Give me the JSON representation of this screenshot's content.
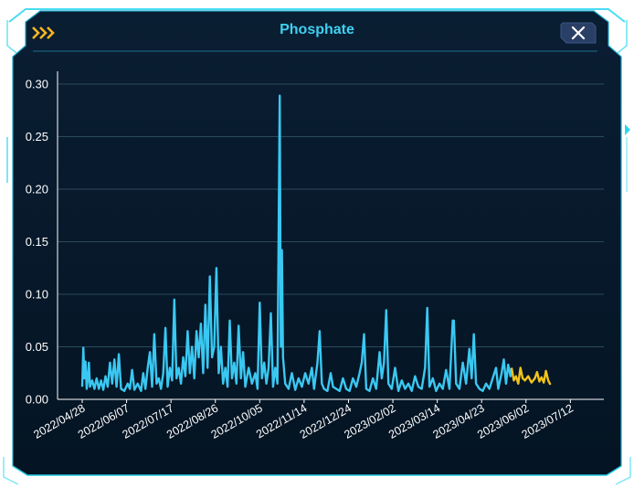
{
  "panel": {
    "title": "Phosphate",
    "chevron_icon": "triple-chevron-right-icon",
    "close_icon": "close-icon",
    "accent_color": "#3fd0f0",
    "chevron_color": "#f5b622",
    "background_color": "#06182a",
    "border_color": "#2ad6ee"
  },
  "chart_data": {
    "type": "line",
    "title": "Phosphate",
    "xlabel": "",
    "ylabel": "",
    "ylim": [
      0,
      0.3
    ],
    "grid": "horizontal",
    "y_ticks": [
      "0.00",
      "0.05",
      "0.10",
      "0.15",
      "0.20",
      "0.25",
      "0.30"
    ],
    "x_ticks": [
      "2022/04/28",
      "2022/06/07",
      "2022/07/17",
      "2022/08/26",
      "2022/10/05",
      "2022/11/14",
      "2022/12/24",
      "2023/02/02",
      "2023/03/14",
      "2023/04/23",
      "2023/06/02",
      "2023/07/12"
    ],
    "x_range": [
      "2022/04/28",
      "2023/07/29"
    ],
    "series": [
      {
        "color": "#3ac8f2",
        "points": [
          [
            "2022/04/28",
            0.012
          ],
          [
            "2022/04/29",
            0.049
          ],
          [
            "2022/04/30",
            0.02
          ],
          [
            "2022/05/01",
            0.036
          ],
          [
            "2022/05/02",
            0.01
          ],
          [
            "2022/05/03",
            0.02
          ],
          [
            "2022/05/04",
            0.035
          ],
          [
            "2022/05/05",
            0.012
          ],
          [
            "2022/05/07",
            0.018
          ],
          [
            "2022/05/09",
            0.01
          ],
          [
            "2022/05/11",
            0.02
          ],
          [
            "2022/05/13",
            0.01
          ],
          [
            "2022/05/15",
            0.018
          ],
          [
            "2022/05/17",
            0.009
          ],
          [
            "2022/05/19",
            0.022
          ],
          [
            "2022/05/21",
            0.012
          ],
          [
            "2022/05/23",
            0.035
          ],
          [
            "2022/05/25",
            0.015
          ],
          [
            "2022/05/27",
            0.038
          ],
          [
            "2022/05/29",
            0.012
          ],
          [
            "2022/05/31",
            0.043
          ],
          [
            "2022/06/02",
            0.01
          ],
          [
            "2022/06/05",
            0.008
          ],
          [
            "2022/06/08",
            0.015
          ],
          [
            "2022/06/10",
            0.01
          ],
          [
            "2022/06/12",
            0.028
          ],
          [
            "2022/06/14",
            0.009
          ],
          [
            "2022/06/17",
            0.015
          ],
          [
            "2022/06/20",
            0.008
          ],
          [
            "2022/06/22",
            0.025
          ],
          [
            "2022/06/24",
            0.01
          ],
          [
            "2022/06/26",
            0.03
          ],
          [
            "2022/06/28",
            0.045
          ],
          [
            "2022/06/30",
            0.012
          ],
          [
            "2022/07/02",
            0.062
          ],
          [
            "2022/07/04",
            0.015
          ],
          [
            "2022/07/06",
            0.02
          ],
          [
            "2022/07/08",
            0.01
          ],
          [
            "2022/07/10",
            0.025
          ],
          [
            "2022/07/12",
            0.068
          ],
          [
            "2022/07/14",
            0.012
          ],
          [
            "2022/07/16",
            0.03
          ],
          [
            "2022/07/18",
            0.018
          ],
          [
            "2022/07/20",
            0.095
          ],
          [
            "2022/07/22",
            0.02
          ],
          [
            "2022/07/24",
            0.03
          ],
          [
            "2022/07/26",
            0.015
          ],
          [
            "2022/07/28",
            0.04
          ],
          [
            "2022/07/30",
            0.022
          ],
          [
            "2022/08/01",
            0.065
          ],
          [
            "2022/08/03",
            0.025
          ],
          [
            "2022/08/05",
            0.05
          ],
          [
            "2022/08/07",
            0.02
          ],
          [
            "2022/08/09",
            0.065
          ],
          [
            "2022/08/11",
            0.04
          ],
          [
            "2022/08/13",
            0.072
          ],
          [
            "2022/08/15",
            0.025
          ],
          [
            "2022/08/17",
            0.09
          ],
          [
            "2022/08/19",
            0.03
          ],
          [
            "2022/08/21",
            0.117
          ],
          [
            "2022/08/23",
            0.04
          ],
          [
            "2022/08/25",
            0.05
          ],
          [
            "2022/08/27",
            0.125
          ],
          [
            "2022/08/29",
            0.025
          ],
          [
            "2022/08/31",
            0.05
          ],
          [
            "2022/09/02",
            0.015
          ],
          [
            "2022/09/04",
            0.03
          ],
          [
            "2022/09/06",
            0.012
          ],
          [
            "2022/09/08",
            0.075
          ],
          [
            "2022/09/10",
            0.02
          ],
          [
            "2022/09/12",
            0.035
          ],
          [
            "2022/09/14",
            0.015
          ],
          [
            "2022/09/16",
            0.07
          ],
          [
            "2022/09/18",
            0.02
          ],
          [
            "2022/09/20",
            0.045
          ],
          [
            "2022/09/22",
            0.012
          ],
          [
            "2022/09/25",
            0.03
          ],
          [
            "2022/09/28",
            0.015
          ],
          [
            "2022/10/01",
            0.025
          ],
          [
            "2022/10/03",
            0.01
          ],
          [
            "2022/10/05",
            0.092
          ],
          [
            "2022/10/07",
            0.02
          ],
          [
            "2022/10/09",
            0.035
          ],
          [
            "2022/10/11",
            0.015
          ],
          [
            "2022/10/13",
            0.03
          ],
          [
            "2022/10/15",
            0.082
          ],
          [
            "2022/10/17",
            0.012
          ],
          [
            "2022/10/19",
            0.03
          ],
          [
            "2022/10/21",
            0.015
          ],
          [
            "2022/10/23",
            0.289
          ],
          [
            "2022/10/24",
            0.05
          ],
          [
            "2022/10/25",
            0.142
          ],
          [
            "2022/10/26",
            0.04
          ],
          [
            "2022/10/28",
            0.015
          ],
          [
            "2022/10/31",
            0.01
          ],
          [
            "2022/11/03",
            0.025
          ],
          [
            "2022/11/06",
            0.009
          ],
          [
            "2022/11/09",
            0.02
          ],
          [
            "2022/11/12",
            0.012
          ],
          [
            "2022/11/15",
            0.025
          ],
          [
            "2022/11/18",
            0.015
          ],
          [
            "2022/11/21",
            0.03
          ],
          [
            "2022/11/23",
            0.01
          ],
          [
            "2022/11/26",
            0.035
          ],
          [
            "2022/11/28",
            0.065
          ],
          [
            "2022/11/30",
            0.015
          ],
          [
            "2022/12/02",
            0.01
          ],
          [
            "2022/12/05",
            0.008
          ],
          [
            "2022/12/08",
            0.025
          ],
          [
            "2022/12/10",
            0.012
          ],
          [
            "2022/12/13",
            0.01
          ],
          [
            "2022/12/16",
            0.008
          ],
          [
            "2022/12/19",
            0.02
          ],
          [
            "2022/12/22",
            0.01
          ],
          [
            "2022/12/25",
            0.008
          ],
          [
            "2022/12/28",
            0.02
          ],
          [
            "2022/12/31",
            0.012
          ],
          [
            "2023/01/03",
            0.025
          ],
          [
            "2023/01/05",
            0.035
          ],
          [
            "2023/01/07",
            0.062
          ],
          [
            "2023/01/09",
            0.01
          ],
          [
            "2023/01/12",
            0.008
          ],
          [
            "2023/01/15",
            0.02
          ],
          [
            "2023/01/18",
            0.01
          ],
          [
            "2023/01/21",
            0.045
          ],
          [
            "2023/01/23",
            0.02
          ],
          [
            "2023/01/25",
            0.035
          ],
          [
            "2023/01/27",
            0.085
          ],
          [
            "2023/01/29",
            0.015
          ],
          [
            "2023/02/01",
            0.01
          ],
          [
            "2023/02/04",
            0.03
          ],
          [
            "2023/02/07",
            0.008
          ],
          [
            "2023/02/10",
            0.018
          ],
          [
            "2023/02/13",
            0.01
          ],
          [
            "2023/02/16",
            0.015
          ],
          [
            "2023/02/19",
            0.008
          ],
          [
            "2023/02/22",
            0.022
          ],
          [
            "2023/02/25",
            0.012
          ],
          [
            "2023/02/28",
            0.01
          ],
          [
            "2023/03/03",
            0.03
          ],
          [
            "2023/03/05",
            0.087
          ],
          [
            "2023/03/07",
            0.012
          ],
          [
            "2023/03/10",
            0.02
          ],
          [
            "2023/03/13",
            0.008
          ],
          [
            "2023/03/16",
            0.015
          ],
          [
            "2023/03/19",
            0.01
          ],
          [
            "2023/03/22",
            0.028
          ],
          [
            "2023/03/25",
            0.01
          ],
          [
            "2023/03/28",
            0.075
          ],
          [
            "2023/03/29",
            0.075
          ],
          [
            "2023/03/31",
            0.015
          ],
          [
            "2023/04/03",
            0.01
          ],
          [
            "2023/04/06",
            0.035
          ],
          [
            "2023/04/09",
            0.015
          ],
          [
            "2023/04/12",
            0.048
          ],
          [
            "2023/04/14",
            0.02
          ],
          [
            "2023/04/16",
            0.062
          ],
          [
            "2023/04/18",
            0.015
          ],
          [
            "2023/04/21",
            0.01
          ],
          [
            "2023/04/24",
            0.008
          ],
          [
            "2023/04/27",
            0.015
          ],
          [
            "2023/04/30",
            0.01
          ],
          [
            "2023/05/03",
            0.02
          ],
          [
            "2023/05/06",
            0.03
          ],
          [
            "2023/05/08",
            0.01
          ],
          [
            "2023/05/11",
            0.025
          ],
          [
            "2023/05/13",
            0.038
          ],
          [
            "2023/05/15",
            0.015
          ],
          [
            "2023/05/17",
            0.033
          ],
          [
            "2023/05/19",
            0.022
          ],
          [
            "2023/05/20",
            0.03
          ]
        ]
      },
      {
        "color": "#f2c31b",
        "points": [
          [
            "2023/05/20",
            0.03
          ],
          [
            "2023/05/22",
            0.018
          ],
          [
            "2023/05/24",
            0.022
          ],
          [
            "2023/05/26",
            0.015
          ],
          [
            "2023/05/28",
            0.03
          ],
          [
            "2023/05/30",
            0.02
          ],
          [
            "2023/06/01",
            0.018
          ],
          [
            "2023/06/04",
            0.022
          ],
          [
            "2023/06/07",
            0.016
          ],
          [
            "2023/06/10",
            0.02
          ],
          [
            "2023/06/12",
            0.026
          ],
          [
            "2023/06/14",
            0.017
          ],
          [
            "2023/06/16",
            0.021
          ],
          [
            "2023/06/18",
            0.016
          ],
          [
            "2023/06/20",
            0.027
          ],
          [
            "2023/06/22",
            0.018
          ],
          [
            "2023/06/24",
            0.014
          ]
        ]
      }
    ]
  }
}
